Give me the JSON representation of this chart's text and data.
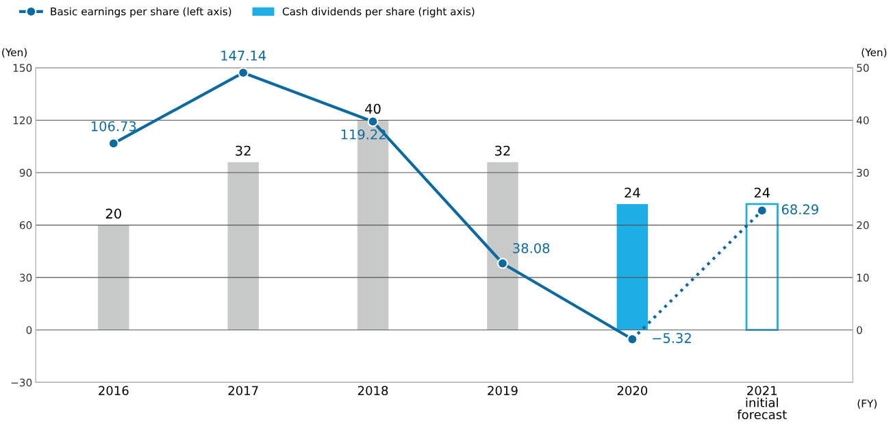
{
  "chart_data": {
    "type": "bar",
    "categories": [
      "2016",
      "2017",
      "2018",
      "2019",
      "2020",
      "2021\ninitial\nforecast"
    ],
    "series": [
      {
        "name": "Cash dividends per share (right axis)",
        "axis": "y2",
        "color": "#1eaee6",
        "colors": [
          "#c8c9c9",
          "#c8c9c9",
          "#c8c9c9",
          "#c8c9c9",
          "#1eaee6",
          null
        ],
        "values": [
          20,
          32,
          40,
          32,
          24,
          null
        ],
        "value_labels": [
          "20",
          "32",
          "40",
          "32",
          "24",
          null
        ]
      },
      {
        "axis": "y2",
        "color": "#1eaee6",
        "line_style": "solid",
        "values": [
          null,
          null,
          null,
          null,
          null,
          24
        ],
        "value_labels": [
          null,
          null,
          null,
          null,
          null,
          "24"
        ]
      },
      {
        "name": "Basic earnings per share (left axis)",
        "type": "line",
        "color": "#0a6aa1",
        "marker": "circle",
        "line_style": "solid",
        "values": [
          106.73,
          147.14,
          119.22,
          38.08,
          -5.32,
          null
        ],
        "value_labels": [
          "106.73",
          "147.14",
          "119.22",
          "38.08",
          "−5.32",
          null
        ]
      },
      {
        "type": "line",
        "color": "#0a6aa1",
        "marker": "circle",
        "line_style": "dotted",
        "values": [
          null,
          null,
          null,
          null,
          -5.32,
          68.29
        ],
        "value_labels": [
          null,
          null,
          null,
          null,
          null,
          "68.29"
        ]
      }
    ],
    "ylabel": "(Yen)",
    "y2label": "(Yen)",
    "xlabel": "(FY)",
    "ylim": [
      -30,
      150
    ],
    "yticks": [
      {
        "value": -30,
        "label": "−30"
      },
      0,
      30,
      60,
      90,
      120,
      150
    ],
    "y2lim": [
      -10,
      50
    ],
    "y2ticks": [
      0,
      10,
      20,
      30,
      40,
      50
    ],
    "grid": "y",
    "legend": "top left"
  }
}
